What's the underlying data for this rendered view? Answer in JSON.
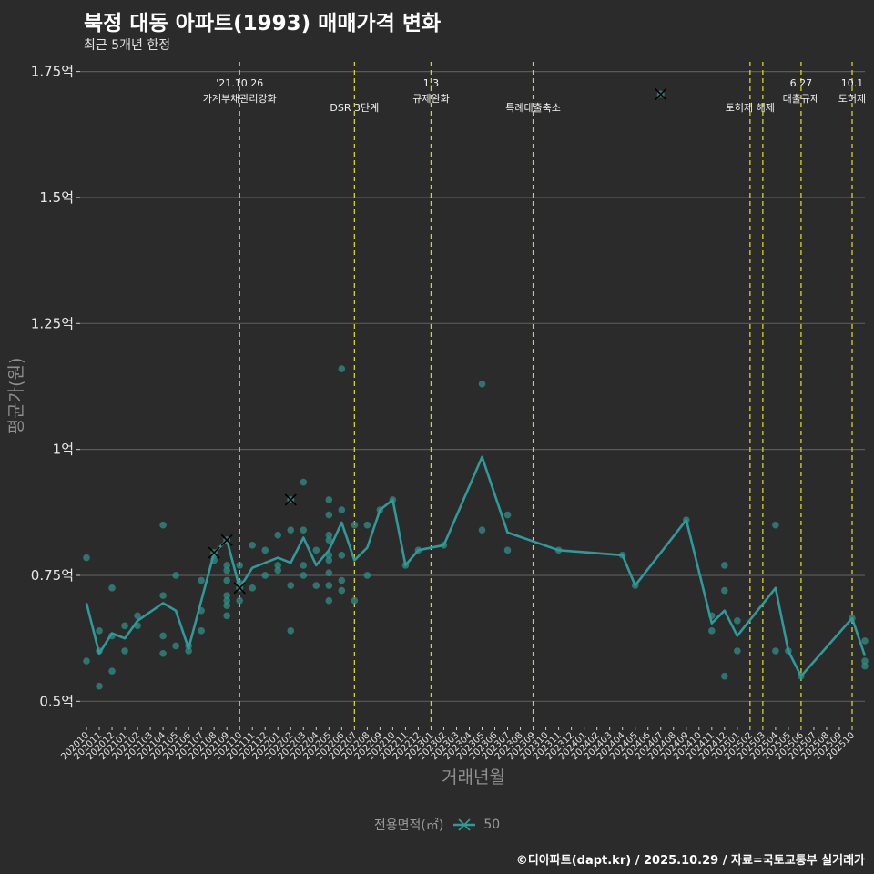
{
  "header": {
    "title": "북정 대동 아파트(1993) 매매가격 변화",
    "subtitle": "최근 5개년 한정"
  },
  "legend": {
    "title": "전용면적(㎡)",
    "label": "50"
  },
  "caption": "©디아파트(dapt.kr) / 2025.10.29 / 자료=국토교통부 실거래가",
  "colors": {
    "background": "#2b2b2b",
    "series": "#2e9a99",
    "points": "#2f8f85",
    "event_line": "#d4d81e",
    "grid": "#5a5a5a",
    "cross": "#000000"
  },
  "chart_data": {
    "type": "line",
    "title": "북정 대동 아파트(1993) 매매가격 변화",
    "xlabel": "거래년월",
    "ylabel": "평균가(원)",
    "ylim": [
      0.45,
      1.78
    ],
    "xlim": [
      -0.5,
      61
    ],
    "x_start": "2020-10",
    "yticks": [
      {
        "v": 0.5,
        "label": "0.5억"
      },
      {
        "v": 0.75,
        "label": "0.75억"
      },
      {
        "v": 1.0,
        "label": "1억"
      },
      {
        "v": 1.25,
        "label": "1.25억"
      },
      {
        "v": 1.5,
        "label": "1.5억"
      },
      {
        "v": 1.75,
        "label": "1.75억"
      }
    ],
    "xtick_labels": [
      "202010",
      "202011",
      "202012",
      "202101",
      "202102",
      "202103",
      "202104",
      "202105",
      "202106",
      "202107",
      "202108",
      "202109",
      "202110",
      "202111",
      "202112",
      "202201",
      "202202",
      "202203",
      "202204",
      "202205",
      "202206",
      "202207",
      "202208",
      "202209",
      "202210",
      "202211",
      "202212",
      "202301",
      "202302",
      "202303",
      "202304",
      "202305",
      "202306",
      "202307",
      "202308",
      "202309",
      "202310",
      "202311",
      "202312",
      "202401",
      "202402",
      "202403",
      "202404",
      "202405",
      "202406",
      "202407",
      "202408",
      "202409",
      "202410",
      "202411",
      "202412",
      "202501",
      "202502",
      "202503",
      "202504",
      "202505",
      "202506",
      "202507",
      "202508",
      "202509",
      "202510"
    ],
    "series": [
      {
        "name": "50",
        "points": [
          [
            0,
            0.695
          ],
          [
            1,
            0.595
          ],
          [
            2,
            0.635
          ],
          [
            3,
            0.625
          ],
          [
            4,
            0.66
          ],
          [
            6,
            0.695
          ],
          [
            7,
            0.68
          ],
          [
            8,
            0.605
          ],
          [
            10,
            0.795
          ],
          [
            11,
            0.82
          ],
          [
            12,
            0.725
          ],
          [
            13,
            0.765
          ],
          [
            15,
            0.785
          ],
          [
            16,
            0.775
          ],
          [
            17,
            0.825
          ],
          [
            18,
            0.77
          ],
          [
            19,
            0.8
          ],
          [
            20,
            0.855
          ],
          [
            21,
            0.78
          ],
          [
            22,
            0.805
          ],
          [
            23,
            0.88
          ],
          [
            24,
            0.9
          ],
          [
            25,
            0.77
          ],
          [
            26,
            0.8
          ],
          [
            28,
            0.81
          ],
          [
            31,
            0.985
          ],
          [
            33,
            0.835
          ],
          [
            37,
            0.8
          ],
          [
            42,
            0.79
          ],
          [
            43,
            0.73
          ],
          [
            47,
            0.86
          ],
          [
            49,
            0.655
          ],
          [
            50,
            0.68
          ],
          [
            51,
            0.63
          ],
          [
            54,
            0.725
          ],
          [
            55,
            0.6
          ],
          [
            56,
            0.55
          ],
          [
            60,
            0.665
          ],
          [
            61,
            0.59
          ]
        ]
      }
    ],
    "scatter": [
      [
        0,
        0.785
      ],
      [
        0,
        0.58
      ],
      [
        1,
        0.64
      ],
      [
        1,
        0.53
      ],
      [
        1,
        0.6
      ],
      [
        2,
        0.725
      ],
      [
        2,
        0.63
      ],
      [
        2,
        0.56
      ],
      [
        3,
        0.65
      ],
      [
        3,
        0.6
      ],
      [
        4,
        0.67
      ],
      [
        4,
        0.65
      ],
      [
        6,
        0.85
      ],
      [
        6,
        0.71
      ],
      [
        6,
        0.63
      ],
      [
        6,
        0.595
      ],
      [
        7,
        0.75
      ],
      [
        7,
        0.61
      ],
      [
        8,
        0.61
      ],
      [
        8,
        0.6
      ],
      [
        9,
        0.74
      ],
      [
        9,
        0.68
      ],
      [
        9,
        0.64
      ],
      [
        10,
        0.79
      ],
      [
        10,
        0.78
      ],
      [
        11,
        0.77
      ],
      [
        11,
        0.76
      ],
      [
        11,
        0.74
      ],
      [
        11,
        0.71
      ],
      [
        11,
        0.7
      ],
      [
        11,
        0.69
      ],
      [
        11,
        0.67
      ],
      [
        12,
        0.77
      ],
      [
        12,
        0.735
      ],
      [
        12,
        0.7
      ],
      [
        13,
        0.81
      ],
      [
        13,
        0.725
      ],
      [
        14,
        0.8
      ],
      [
        14,
        0.75
      ],
      [
        15,
        0.83
      ],
      [
        15,
        0.77
      ],
      [
        15,
        0.76
      ],
      [
        16,
        0.84
      ],
      [
        16,
        0.73
      ],
      [
        16,
        0.64
      ],
      [
        17,
        0.935
      ],
      [
        17,
        0.84
      ],
      [
        17,
        0.77
      ],
      [
        17,
        0.75
      ],
      [
        18,
        0.8
      ],
      [
        18,
        0.73
      ],
      [
        19,
        0.9
      ],
      [
        19,
        0.87
      ],
      [
        19,
        0.83
      ],
      [
        19,
        0.82
      ],
      [
        19,
        0.79
      ],
      [
        19,
        0.78
      ],
      [
        19,
        0.755
      ],
      [
        19,
        0.73
      ],
      [
        19,
        0.7
      ],
      [
        20,
        1.16
      ],
      [
        20,
        0.88
      ],
      [
        20,
        0.79
      ],
      [
        20,
        0.74
      ],
      [
        20,
        0.72
      ],
      [
        21,
        0.85
      ],
      [
        21,
        0.7
      ],
      [
        22,
        0.85
      ],
      [
        22,
        0.75
      ],
      [
        23,
        0.88
      ],
      [
        24,
        0.9
      ],
      [
        25,
        0.77
      ],
      [
        26,
        0.8
      ],
      [
        28,
        0.81
      ],
      [
        31,
        1.13
      ],
      [
        31,
        0.84
      ],
      [
        33,
        0.87
      ],
      [
        33,
        0.8
      ],
      [
        37,
        0.8
      ],
      [
        42,
        0.79
      ],
      [
        43,
        0.73
      ],
      [
        47,
        0.86
      ],
      [
        49,
        0.67
      ],
      [
        49,
        0.64
      ],
      [
        50,
        0.77
      ],
      [
        50,
        0.72
      ],
      [
        50,
        0.55
      ],
      [
        51,
        0.66
      ],
      [
        51,
        0.6
      ],
      [
        54,
        0.85
      ],
      [
        54,
        0.6
      ],
      [
        55,
        0.6
      ],
      [
        56,
        0.55
      ],
      [
        60,
        0.665
      ],
      [
        61,
        0.62
      ],
      [
        61,
        0.58
      ],
      [
        61,
        0.57
      ]
    ],
    "crosses": [
      [
        10,
        0.795
      ],
      [
        11,
        0.82
      ],
      [
        12,
        0.725
      ],
      [
        16,
        0.9
      ],
      [
        45,
        1.705
      ]
    ],
    "events": [
      {
        "x": 12.0,
        "lines": [
          "'21.10.26",
          "가계부채관리강화"
        ]
      },
      {
        "x": 21.0,
        "lines": [
          "DSR 3단계"
        ]
      },
      {
        "x": 27.0,
        "lines": [
          "1.3",
          "규제완화"
        ]
      },
      {
        "x": 35.0,
        "lines": [
          "특례대출축소"
        ]
      },
      {
        "x": 52.0,
        "lines": [
          "토허제 해제"
        ]
      },
      {
        "x": 53.0,
        "lines": [
          ""
        ]
      },
      {
        "x": 56.0,
        "lines": [
          "6.27",
          "대출규제"
        ]
      },
      {
        "x": 60.0,
        "lines": [
          "10.1",
          "토허제"
        ]
      }
    ]
  }
}
